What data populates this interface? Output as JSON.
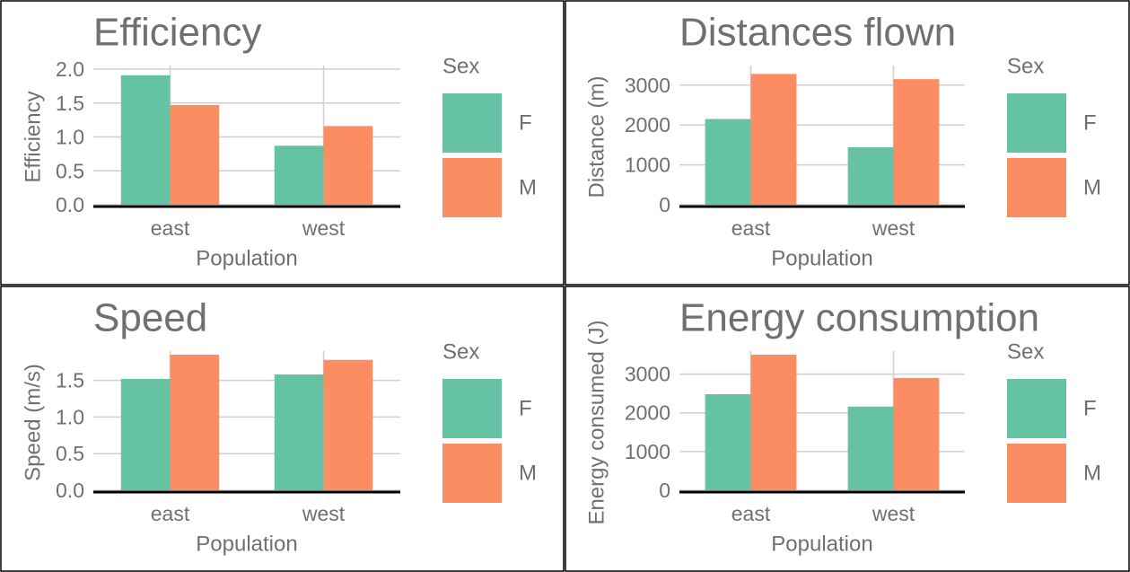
{
  "legend": {
    "title": "Sex",
    "entries": [
      {
        "label": "F",
        "color": "#66c2a5"
      },
      {
        "label": "M",
        "color": "#fc8d62"
      }
    ]
  },
  "chart_data": [
    {
      "type": "bar",
      "title": "Efficiency",
      "xlabel": "Population",
      "ylabel": "Efficiency",
      "categories": [
        "east",
        "west"
      ],
      "series": [
        {
          "name": "F",
          "values": [
            1.91,
            0.87
          ]
        },
        {
          "name": "M",
          "values": [
            1.47,
            1.16
          ]
        }
      ],
      "ylim": [
        0,
        2.0
      ],
      "yticks": [
        0,
        0.5,
        1.0,
        1.5,
        2.0
      ],
      "ytick_labels": [
        "0.0",
        "0.5",
        "1.0",
        "1.5",
        "2.0"
      ],
      "grid": true,
      "legend_position": "right"
    },
    {
      "type": "bar",
      "title": "Distances flown",
      "xlabel": "Population",
      "ylabel": "Distance (m)",
      "categories": [
        "east",
        "west"
      ],
      "series": [
        {
          "name": "F",
          "values": [
            2150,
            1440
          ]
        },
        {
          "name": "M",
          "values": [
            3280,
            3150
          ]
        }
      ],
      "ylim": [
        0,
        3400
      ],
      "yticks": [
        0,
        1000,
        2000,
        3000
      ],
      "ytick_labels": [
        "0",
        "1000",
        "2000",
        "3000"
      ],
      "grid": true,
      "legend_position": "right"
    },
    {
      "type": "bar",
      "title": "Speed",
      "xlabel": "Population",
      "ylabel": "Speed (m/s)",
      "categories": [
        "east",
        "west"
      ],
      "series": [
        {
          "name": "F",
          "values": [
            1.52,
            1.58
          ]
        },
        {
          "name": "M",
          "values": [
            1.85,
            1.78
          ]
        }
      ],
      "ylim": [
        0,
        1.85
      ],
      "yticks": [
        0,
        0.5,
        1.0,
        1.5
      ],
      "ytick_labels": [
        "0.0",
        "0.5",
        "1.0",
        "1.5"
      ],
      "grid": true,
      "legend_position": "right"
    },
    {
      "type": "bar",
      "title": "Energy consumption",
      "xlabel": "Population",
      "ylabel": "Energy consumed (J)",
      "categories": [
        "east",
        "west"
      ],
      "series": [
        {
          "name": "F",
          "values": [
            2480,
            2160
          ]
        },
        {
          "name": "M",
          "values": [
            3500,
            2900
          ]
        }
      ],
      "ylim": [
        0,
        3500
      ],
      "yticks": [
        0,
        1000,
        2000,
        3000
      ],
      "ytick_labels": [
        "0",
        "1000",
        "2000",
        "3000"
      ],
      "grid": true,
      "legend_position": "right"
    }
  ]
}
